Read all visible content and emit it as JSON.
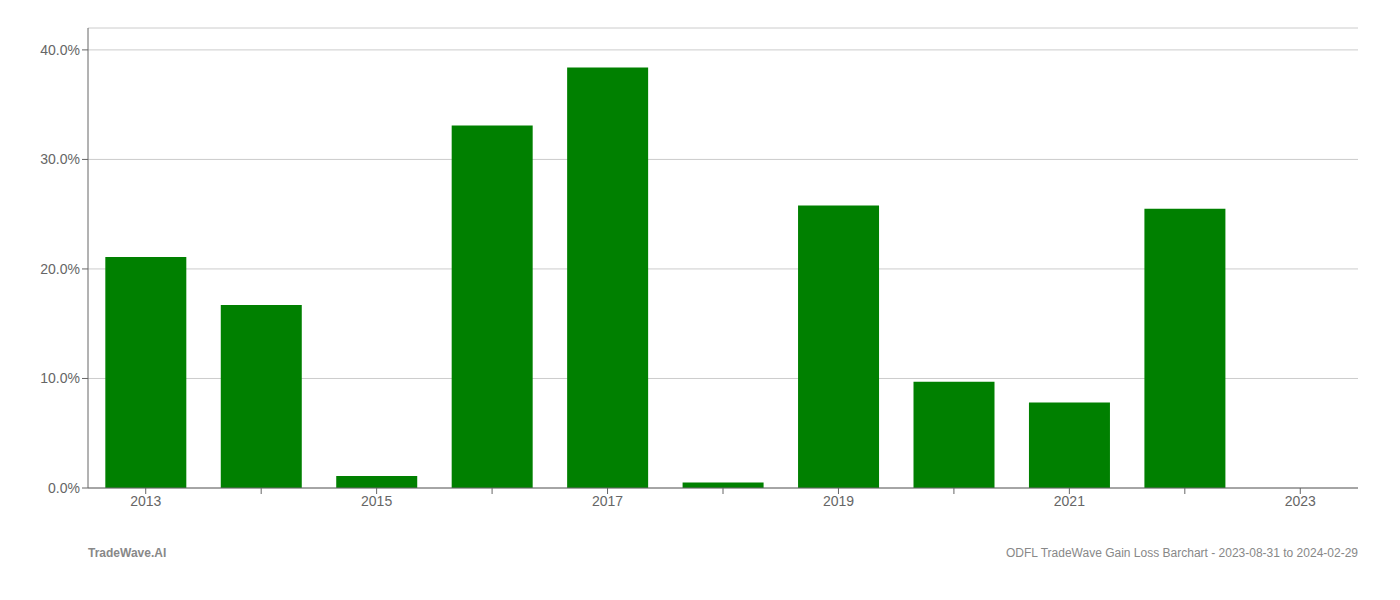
{
  "chart_data": {
    "type": "bar",
    "categories": [
      "2013",
      null,
      "2015",
      null,
      "2017",
      null,
      "2019",
      null,
      "2021",
      null,
      "2023"
    ],
    "values": [
      0.211,
      0.167,
      0.011,
      0.331,
      0.384,
      0.005,
      0.258,
      0.097,
      0.078,
      0.255,
      0.0
    ],
    "color": "#008000",
    "ylim": [
      0,
      0.42
    ],
    "yticks": [
      {
        "value": 0.0,
        "label": "0.0%"
      },
      {
        "value": 0.1,
        "label": "10.0%"
      },
      {
        "value": 0.2,
        "label": "20.0%"
      },
      {
        "value": 0.3,
        "label": "30.0%"
      },
      {
        "value": 0.4,
        "label": "40.0%"
      }
    ],
    "grid": true,
    "annotations": [
      "TradeWave.AI",
      "ODFL TradeWave Gain Loss Barchart - 2023-08-31 to 2024-02-29"
    ]
  }
}
